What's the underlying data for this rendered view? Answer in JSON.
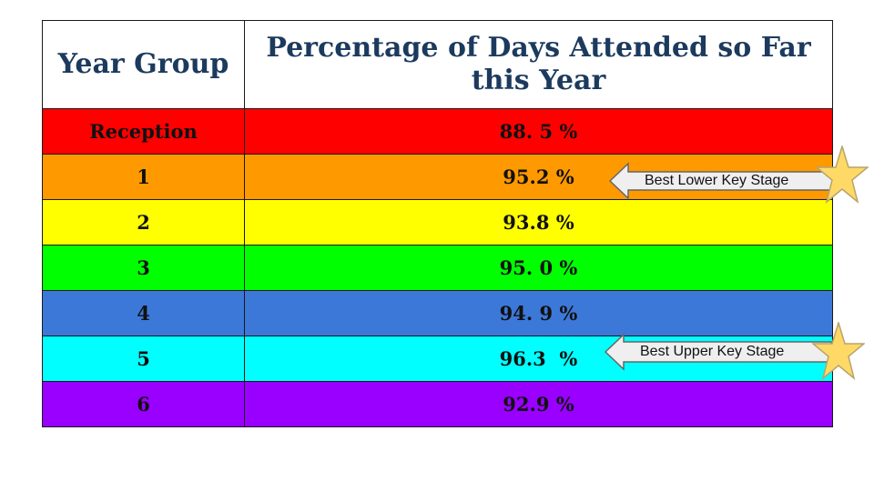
{
  "table": {
    "headers": [
      "Year Group",
      "Percentage of Days Attended so Far this Year"
    ],
    "rows": [
      {
        "year": "Reception",
        "percentage": "88. 5 %",
        "color": "#ff0000"
      },
      {
        "year": "1",
        "percentage": "95.2 %",
        "color": "#ff9900"
      },
      {
        "year": "2",
        "percentage": "93.8 %",
        "color": "#ffff00"
      },
      {
        "year": "3",
        "percentage": "95. 0 %",
        "color": "#00ff00"
      },
      {
        "year": "4",
        "percentage": "94. 9 %",
        "color": "#3c78d8"
      },
      {
        "year": "5",
        "percentage": "96.3  %",
        "color": "#00ffff"
      },
      {
        "year": "6",
        "percentage": "92.9 %",
        "color": "#9900ff"
      }
    ]
  },
  "callouts": {
    "lower": {
      "label": "Best Lower Key Stage",
      "icon": "star-icon"
    },
    "upper": {
      "label": "Best Upper Key Stage",
      "icon": "star-icon"
    }
  },
  "colors": {
    "header_text": "#1c3a5e",
    "arrow_fill": "#efefef",
    "arrow_stroke": "#666666",
    "star_fill": "#ffd966",
    "star_stroke": "#b7a46b"
  }
}
